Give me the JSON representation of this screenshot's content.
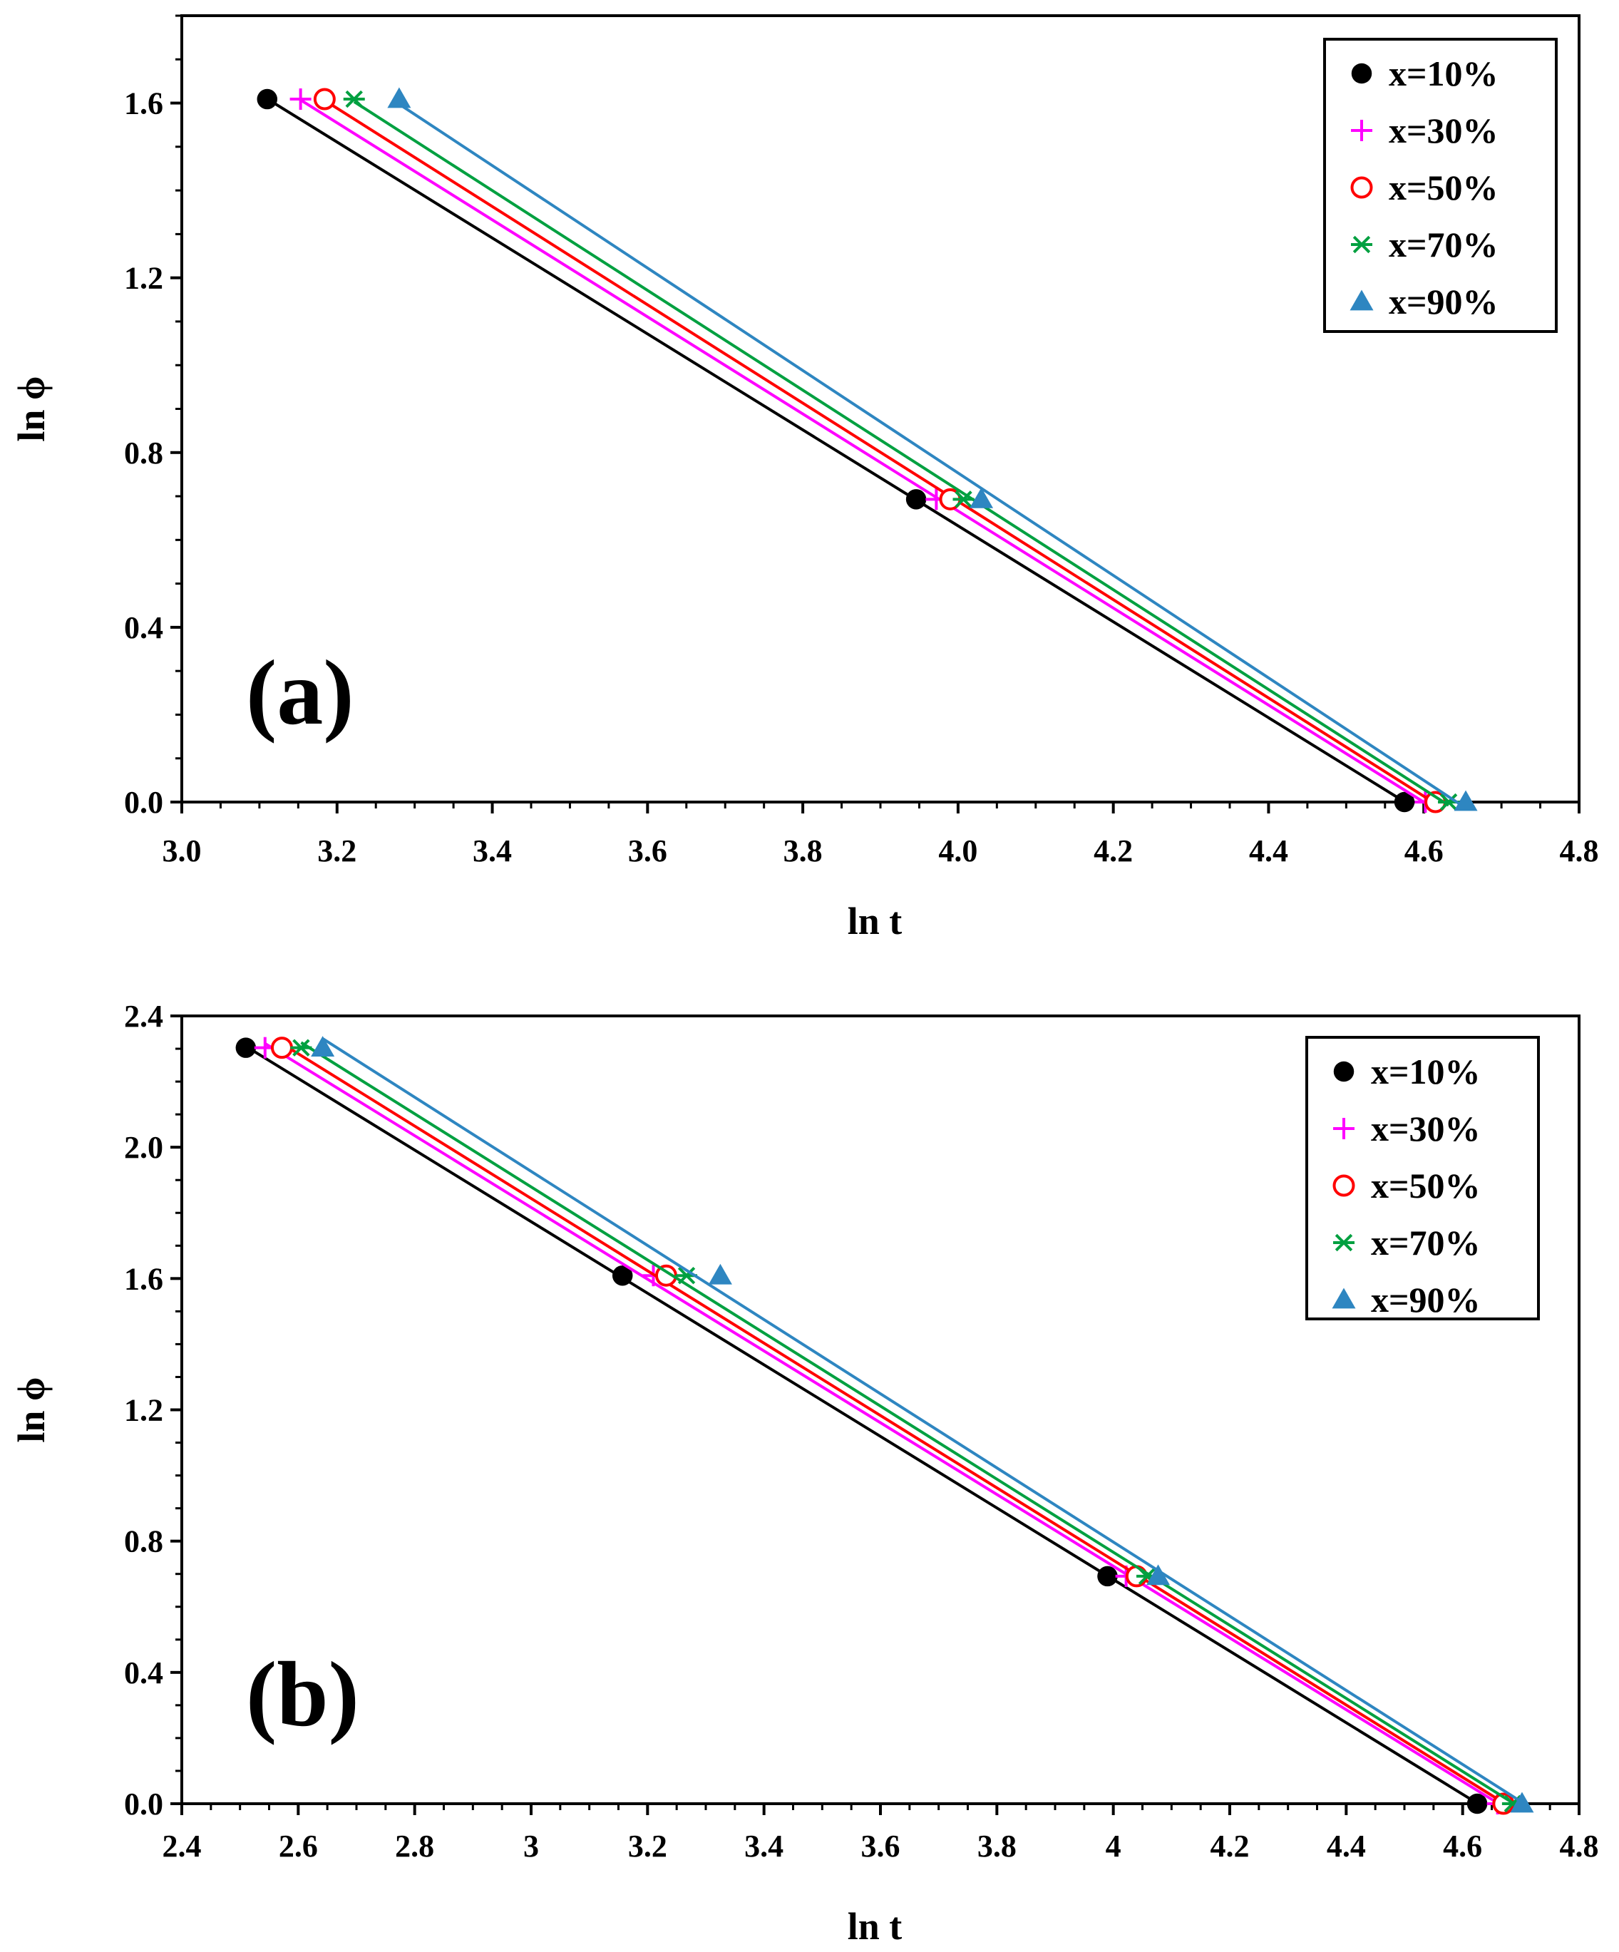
{
  "chart_data": [
    {
      "type": "scatter",
      "panel_label": "(a)",
      "xlabel": "ln t",
      "ylabel": "ln ϕ",
      "xlim": [
        3.0,
        4.8
      ],
      "ylim": [
        0.0,
        1.8
      ],
      "xticks": [
        3.0,
        3.2,
        3.4,
        3.6,
        3.8,
        4.0,
        4.2,
        4.4,
        4.6,
        4.8
      ],
      "xtick_labels": [
        "3.0",
        "3.2",
        "3.4",
        "3.6",
        "3.8",
        "4.0",
        "4.2",
        "4.4",
        "4.6",
        "4.8"
      ],
      "yticks": [
        0.0,
        0.4,
        0.8,
        1.2,
        1.6
      ],
      "ytick_labels": [
        "0.0",
        "0.4",
        "0.8",
        "1.2",
        "1.6"
      ],
      "grid": false,
      "legend_position": "top-right",
      "series": [
        {
          "name": "x=10%",
          "marker": "filled-circle",
          "color": "#000000",
          "x": [
            3.11,
            3.946,
            4.575
          ],
          "y": [
            1.609,
            0.693,
            0.0
          ]
        },
        {
          "name": "x=30%",
          "marker": "plus",
          "color": "#FF00FF",
          "x": [
            3.153,
            3.972,
            4.602
          ],
          "y": [
            1.609,
            0.693,
            0.0
          ]
        },
        {
          "name": "x=50%",
          "marker": "open-circle",
          "color": "#FF0000",
          "x": [
            3.184,
            3.99,
            4.615
          ],
          "y": [
            1.609,
            0.693,
            0.0
          ]
        },
        {
          "name": "x=70%",
          "marker": "asterisk",
          "color": "#00A040",
          "x": [
            3.222,
            4.007,
            4.632
          ],
          "y": [
            1.609,
            0.693,
            0.0
          ]
        },
        {
          "name": "x=90%",
          "marker": "filled-triangle",
          "color": "#2E86C1",
          "x": [
            3.28,
            4.03,
            4.654
          ],
          "y": [
            1.609,
            0.693,
            0.0
          ]
        }
      ]
    },
    {
      "type": "scatter",
      "panel_label": "(b)",
      "xlabel": "ln t",
      "ylabel": "ln ϕ",
      "xlim": [
        2.4,
        4.8
      ],
      "ylim": [
        0.0,
        2.4
      ],
      "xticks": [
        2.4,
        2.6,
        2.8,
        3.0,
        3.2,
        3.4,
        3.6,
        3.8,
        4.0,
        4.2,
        4.4,
        4.6,
        4.8
      ],
      "xtick_labels": [
        "2.4",
        "2.6",
        "2.8",
        "3",
        "3.2",
        "3.4",
        "3.6",
        "3.8",
        "4",
        "4.2",
        "4.4",
        "4.6",
        "4.8"
      ],
      "yticks": [
        0.0,
        0.4,
        0.8,
        1.2,
        1.6,
        2.0,
        2.4
      ],
      "ytick_labels": [
        "0.0",
        "0.4",
        "0.8",
        "1.2",
        "1.6",
        "2.0",
        "2.4"
      ],
      "grid": false,
      "legend_position": "top-right",
      "series": [
        {
          "name": "x=10%",
          "marker": "filled-circle",
          "color": "#000000",
          "x": [
            2.51,
            3.157,
            3.99,
            4.625
          ],
          "y": [
            2.303,
            1.609,
            0.693,
            0.0
          ]
        },
        {
          "name": "x=30%",
          "marker": "plus",
          "color": "#FF00FF",
          "x": [
            2.543,
            3.21,
            4.022,
            4.66
          ],
          "y": [
            2.303,
            1.609,
            0.693,
            0.0
          ]
        },
        {
          "name": "x=50%",
          "marker": "open-circle",
          "color": "#FF0000",
          "x": [
            2.572,
            3.232,
            4.04,
            4.67
          ],
          "y": [
            2.303,
            1.609,
            0.693,
            0.0
          ]
        },
        {
          "name": "x=70%",
          "marker": "asterisk",
          "color": "#00A040",
          "x": [
            2.605,
            3.267,
            4.058,
            4.686
          ],
          "y": [
            2.303,
            1.609,
            0.693,
            0.0
          ]
        },
        {
          "name": "x=90%",
          "marker": "filled-triangle",
          "color": "#2E86C1",
          "x": [
            2.642,
            3.325,
            4.077,
            4.702
          ],
          "y": [
            2.303,
            1.609,
            0.693,
            0.0
          ]
        }
      ]
    }
  ]
}
